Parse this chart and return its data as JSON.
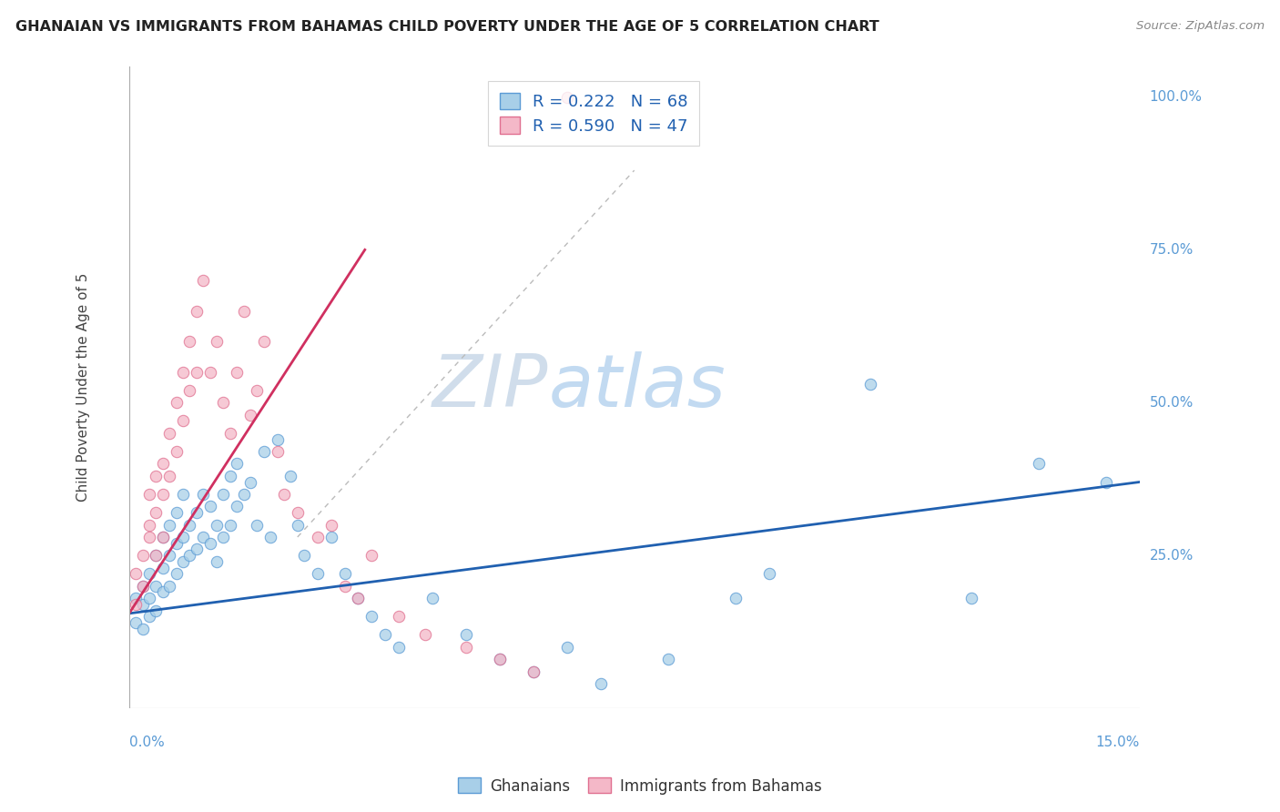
{
  "title": "GHANAIAN VS IMMIGRANTS FROM BAHAMAS CHILD POVERTY UNDER THE AGE OF 5 CORRELATION CHART",
  "source": "Source: ZipAtlas.com",
  "ylabel_label": "Child Poverty Under the Age of 5",
  "legend_blue_label": "R = 0.222   N = 68",
  "legend_pink_label": "R = 0.590   N = 47",
  "legend1_label": "Ghanaians",
  "legend2_label": "Immigrants from Bahamas",
  "blue_color": "#a8cfe8",
  "pink_color": "#f4b8c8",
  "blue_edge_color": "#5b9bd5",
  "pink_edge_color": "#e07090",
  "blue_line_color": "#2060b0",
  "pink_line_color": "#d03060",
  "axis_label_color": "#5b9bd5",
  "bg_color": "#ffffff",
  "grid_color": "#e0e0e0",
  "title_color": "#222222",
  "source_color": "#888888",
  "ylabel_color": "#444444",
  "xmin": 0.0,
  "xmax": 0.15,
  "ymin": 0.0,
  "ymax": 1.05,
  "blue_scatter_x": [
    0.001,
    0.001,
    0.002,
    0.002,
    0.002,
    0.003,
    0.003,
    0.003,
    0.004,
    0.004,
    0.004,
    0.005,
    0.005,
    0.005,
    0.006,
    0.006,
    0.006,
    0.007,
    0.007,
    0.007,
    0.008,
    0.008,
    0.008,
    0.009,
    0.009,
    0.01,
    0.01,
    0.011,
    0.011,
    0.012,
    0.012,
    0.013,
    0.013,
    0.014,
    0.014,
    0.015,
    0.015,
    0.016,
    0.016,
    0.017,
    0.018,
    0.019,
    0.02,
    0.021,
    0.022,
    0.024,
    0.025,
    0.026,
    0.028,
    0.03,
    0.032,
    0.034,
    0.036,
    0.038,
    0.04,
    0.045,
    0.05,
    0.055,
    0.06,
    0.065,
    0.07,
    0.08,
    0.09,
    0.095,
    0.11,
    0.125,
    0.135,
    0.145
  ],
  "blue_scatter_y": [
    0.18,
    0.14,
    0.2,
    0.17,
    0.13,
    0.22,
    0.18,
    0.15,
    0.25,
    0.2,
    0.16,
    0.28,
    0.23,
    0.19,
    0.3,
    0.25,
    0.2,
    0.32,
    0.27,
    0.22,
    0.35,
    0.28,
    0.24,
    0.3,
    0.25,
    0.32,
    0.26,
    0.35,
    0.28,
    0.33,
    0.27,
    0.3,
    0.24,
    0.35,
    0.28,
    0.38,
    0.3,
    0.4,
    0.33,
    0.35,
    0.37,
    0.3,
    0.42,
    0.28,
    0.44,
    0.38,
    0.3,
    0.25,
    0.22,
    0.28,
    0.22,
    0.18,
    0.15,
    0.12,
    0.1,
    0.18,
    0.12,
    0.08,
    0.06,
    0.1,
    0.04,
    0.08,
    0.18,
    0.22,
    0.53,
    0.18,
    0.4,
    0.37
  ],
  "pink_scatter_x": [
    0.001,
    0.001,
    0.002,
    0.002,
    0.003,
    0.003,
    0.003,
    0.004,
    0.004,
    0.004,
    0.005,
    0.005,
    0.005,
    0.006,
    0.006,
    0.007,
    0.007,
    0.008,
    0.008,
    0.009,
    0.009,
    0.01,
    0.01,
    0.011,
    0.012,
    0.013,
    0.014,
    0.015,
    0.016,
    0.017,
    0.018,
    0.019,
    0.02,
    0.022,
    0.023,
    0.025,
    0.028,
    0.03,
    0.032,
    0.034,
    0.036,
    0.04,
    0.044,
    0.05,
    0.055,
    0.06,
    0.065
  ],
  "pink_scatter_y": [
    0.17,
    0.22,
    0.25,
    0.2,
    0.3,
    0.35,
    0.28,
    0.38,
    0.32,
    0.25,
    0.4,
    0.35,
    0.28,
    0.45,
    0.38,
    0.5,
    0.42,
    0.55,
    0.47,
    0.6,
    0.52,
    0.65,
    0.55,
    0.7,
    0.55,
    0.6,
    0.5,
    0.45,
    0.55,
    0.65,
    0.48,
    0.52,
    0.6,
    0.42,
    0.35,
    0.32,
    0.28,
    0.3,
    0.2,
    0.18,
    0.25,
    0.15,
    0.12,
    0.1,
    0.08,
    0.06,
    1.0
  ],
  "blue_trend_x": [
    0.0,
    0.15
  ],
  "blue_trend_y": [
    0.155,
    0.37
  ],
  "pink_trend_x": [
    0.0,
    0.035
  ],
  "pink_trend_y": [
    0.155,
    0.75
  ],
  "dashed_line_x": [
    0.025,
    0.075
  ],
  "dashed_line_y": [
    0.28,
    0.88
  ]
}
